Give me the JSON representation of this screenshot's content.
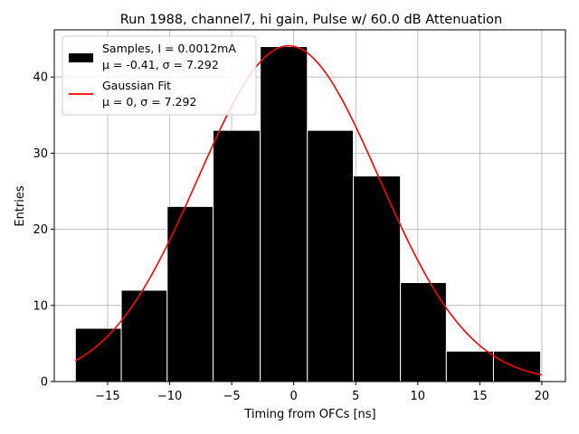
{
  "chart_data": {
    "type": "bar",
    "title": "Run 1988, channel7, hi gain, Pulse w/ 60.0 dB Attenuation",
    "xlabel": "Timing from OFCs [ns]",
    "ylabel": "Entries",
    "xlim": [
      -19.3,
      21.9
    ],
    "ylim": [
      0,
      46.2
    ],
    "xticks": [
      -15,
      -10,
      -5,
      0,
      5,
      10,
      15,
      20
    ],
    "xtick_labels": [
      "−15",
      "−10",
      "−5",
      "0",
      "5",
      "10",
      "15",
      "20"
    ],
    "yticks": [
      0,
      10,
      20,
      30,
      40
    ],
    "ytick_labels": [
      "0",
      "10",
      "20",
      "30",
      "40"
    ],
    "grid": true,
    "legend_position": "top-left",
    "bins": [
      {
        "x0": -17.6,
        "x1": -13.9,
        "count": 7
      },
      {
        "x0": -13.9,
        "x1": -10.2,
        "count": 12
      },
      {
        "x0": -10.2,
        "x1": -6.5,
        "count": 23
      },
      {
        "x0": -6.5,
        "x1": -2.7,
        "count": 33
      },
      {
        "x0": -2.7,
        "x1": 1.1,
        "count": 44
      },
      {
        "x0": 1.1,
        "x1": 4.8,
        "count": 33
      },
      {
        "x0": 4.8,
        "x1": 8.6,
        "count": 27
      },
      {
        "x0": 8.6,
        "x1": 12.3,
        "count": 13
      },
      {
        "x0": 12.3,
        "x1": 16.1,
        "count": 4
      },
      {
        "x0": 16.1,
        "x1": 19.9,
        "count": 4
      }
    ],
    "fit": {
      "type": "gaussian",
      "mean": -0.41,
      "sigma": 7.292,
      "amplitude": 44.1,
      "x_range": [
        -17.6,
        20.0
      ]
    },
    "series": [
      {
        "name": "Samples, I = 0.0012mA",
        "detail": "μ = -0.41, σ = 7.292",
        "color": "#000000",
        "kind": "histogram"
      },
      {
        "name": "Gaussian Fit",
        "detail": "μ = 0, σ = 7.292",
        "color": "#ff0000",
        "kind": "line"
      }
    ]
  }
}
